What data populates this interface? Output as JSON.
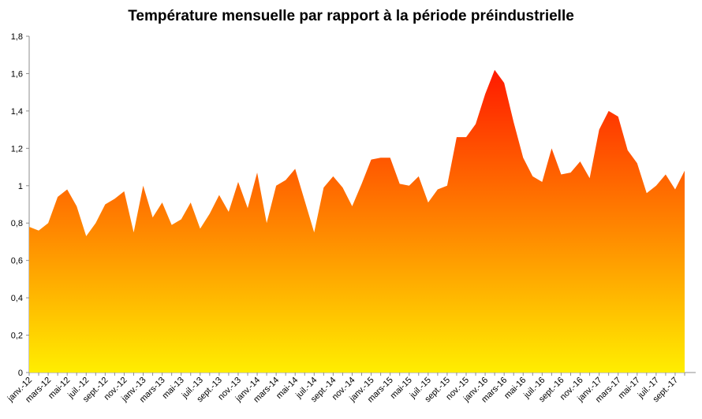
{
  "chart_data": {
    "type": "area",
    "title": "Température mensuelle par rapport à la période préindustrielle",
    "xlabel": "",
    "ylabel": "",
    "ylim": [
      0,
      1.8
    ],
    "grid": false,
    "legend": "none",
    "y_ticks": [
      "0",
      "0,2",
      "0,4",
      "0,6",
      "0,8",
      "1",
      "1,2",
      "1,4",
      "1,6",
      "1,8"
    ],
    "x_tick_labels": [
      "janv.-12",
      "mars-12",
      "mai-12",
      "juil.-12",
      "sept.-12",
      "nov.-12",
      "janv.-13",
      "mars-13",
      "mai-13",
      "juil.-13",
      "sept.-13",
      "nov.-13",
      "janv.-14",
      "mars-14",
      "mai-14",
      "juil.-14",
      "sept.-14",
      "nov.-14",
      "janv.-15",
      "mars-15",
      "mai-15",
      "juil.-15",
      "sept.-15",
      "nov.-15",
      "janv.-16",
      "mars-16",
      "mai-16",
      "juil.-16",
      "sept.-16",
      "nov.-16",
      "janv.-17",
      "mars-17",
      "mai-17",
      "juil.-17",
      "sept.-17"
    ],
    "x_start": "2012-01",
    "values": [
      0.78,
      0.76,
      0.8,
      0.94,
      0.98,
      0.89,
      0.73,
      0.8,
      0.9,
      0.93,
      0.97,
      0.75,
      1.0,
      0.83,
      0.91,
      0.79,
      0.82,
      0.91,
      0.77,
      0.85,
      0.95,
      0.86,
      1.02,
      0.88,
      1.07,
      0.8,
      1.0,
      1.03,
      1.09,
      0.92,
      0.75,
      0.99,
      1.05,
      0.99,
      0.89,
      1.01,
      1.14,
      1.15,
      1.15,
      1.01,
      1.0,
      1.05,
      0.91,
      0.98,
      1.0,
      1.26,
      1.26,
      1.33,
      1.49,
      1.62,
      1.55,
      1.34,
      1.15,
      1.05,
      1.02,
      1.2,
      1.06,
      1.07,
      1.13,
      1.04,
      1.3,
      1.4,
      1.37,
      1.19,
      1.12,
      0.96,
      1.0,
      1.06,
      0.98,
      1.08
    ],
    "colors": {
      "top": "#ff1a00",
      "middle": "#ff8c00",
      "bottom": "#ffee00",
      "axis": "#8c8c8c"
    }
  }
}
